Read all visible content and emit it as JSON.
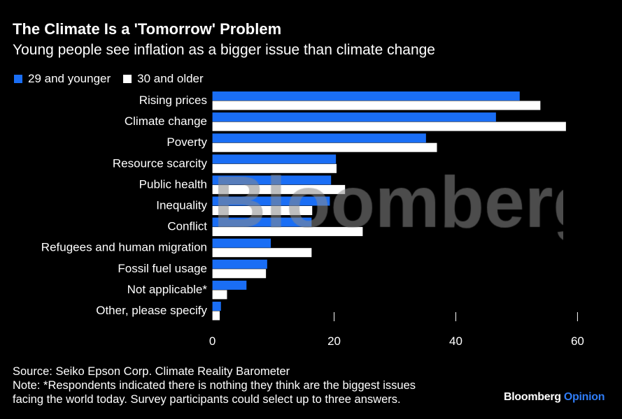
{
  "chart_data": {
    "type": "bar",
    "orientation": "horizontal",
    "title": "The Climate Is a 'Tomorrow' Problem",
    "subtitle": "Young people see inflation as a bigger issue than climate change",
    "categories": [
      "Rising prices",
      "Climate change",
      "Poverty",
      "Resource scarcity",
      "Public health",
      "Inequality",
      "Conflict",
      "Refugees and human migration",
      "Fossil fuel usage",
      "Not applicable*",
      "Other, please specify"
    ],
    "series": [
      {
        "name": "29 and younger",
        "color": "#1a6ef5",
        "values": [
          50.5,
          46.6,
          35.1,
          20.3,
          19.5,
          19.3,
          16.3,
          9.6,
          9.0,
          5.6,
          1.4
        ]
      },
      {
        "name": "30 and older",
        "color": "#ffffff",
        "values": [
          53.9,
          58.1,
          36.9,
          20.4,
          21.8,
          16.4,
          24.7,
          16.3,
          8.8,
          2.4,
          1.2
        ]
      }
    ],
    "xlim": [
      0,
      60
    ],
    "xticks": [
      0,
      20,
      40,
      60
    ],
    "xtick_labels": [
      "0",
      "20",
      "40",
      "60"
    ],
    "grid": false,
    "legend_position": "top-left",
    "watermark": "Bloomberg"
  },
  "footer": {
    "source": "Source: Seiko Epson Corp. Climate Reality Barometer",
    "note_line1": "Note: *Respondents indicated there is nothing they think are the biggest issues",
    "note_line2": "facing the world today. Survey participants could select up to three answers."
  },
  "logo": {
    "brand": "Bloomberg",
    "section": "Opinion"
  }
}
